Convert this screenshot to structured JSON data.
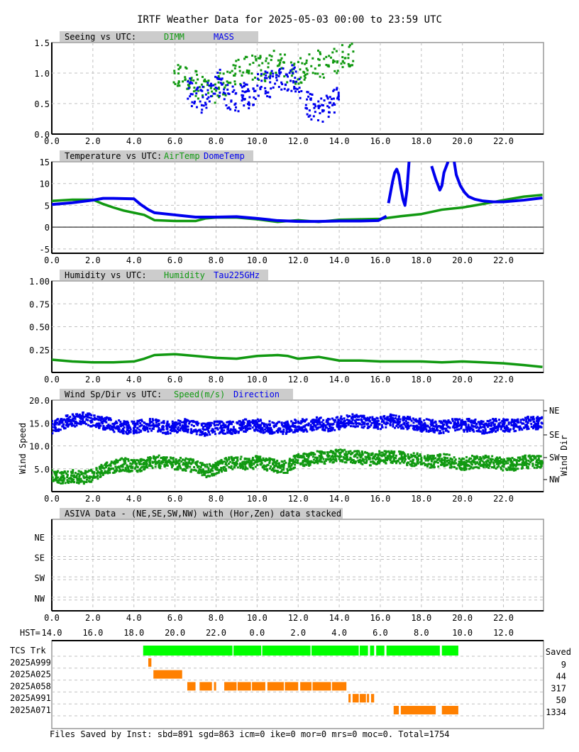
{
  "page_title": "IRTF Weather Data for 2025-05-03 00:00 to 23:59 UTC",
  "utc_ticks": [
    "0.0",
    "2.0",
    "4.0",
    "6.0",
    "8.0",
    "10.0",
    "12.0",
    "14.0",
    "16.0",
    "18.0",
    "20.0",
    "22.0"
  ],
  "hst_label": "HST=",
  "hst_ticks": [
    "14.0",
    "16.0",
    "18.0",
    "20.0",
    "22.0",
    "0.0",
    "2.0",
    "4.0",
    "6.0",
    "8.0",
    "10.0",
    "12.0"
  ],
  "colors": {
    "green": "#119911",
    "blue": "#0000ee",
    "bright_green": "#00ff00",
    "orange": "#ff8000",
    "header_bg": "#cccccc",
    "grid": "#c0c0c0"
  },
  "chart_data": [
    {
      "type": "scatter",
      "title": "Seeing vs UTC:",
      "series": [
        {
          "name": "DIMM",
          "color": "green",
          "segments": [
            {
              "x": [
                5.9,
                6.3,
                6.8,
                7.3,
                7.8,
                8.3,
                8.8,
                9.3,
                9.8,
                10.3,
                10.8,
                11.3,
                11.8,
                12.3,
                12.8,
                13.3,
                13.8,
                14.3,
                14.7
              ],
              "y": [
                0.85,
                0.95,
                0.9,
                0.75,
                0.7,
                0.8,
                0.95,
                1.05,
                1.1,
                1.05,
                1.15,
                1.1,
                1.0,
                1.05,
                1.2,
                1.1,
                1.2,
                1.3,
                1.35
              ]
            }
          ]
        },
        {
          "name": "MASS",
          "color": "blue",
          "segments": [
            {
              "x": [
                6.6,
                7.0,
                7.4,
                7.8,
                8.2,
                8.6,
                9.0,
                9.4,
                9.8,
                10.2,
                10.6,
                11.0,
                11.4,
                11.8,
                12.2,
                12.6,
                13.0,
                13.3,
                13.7,
                14.0
              ],
              "y": [
                0.75,
                0.6,
                0.55,
                0.7,
                0.85,
                0.6,
                0.55,
                0.7,
                0.55,
                0.95,
                0.8,
                1.0,
                0.85,
                0.95,
                0.6,
                0.45,
                0.4,
                0.4,
                0.55,
                0.65
              ]
            }
          ]
        }
      ],
      "ylim": [
        0,
        1.5
      ],
      "yticks": [
        "0.0",
        "0.5",
        "1.0",
        "1.5"
      ]
    },
    {
      "type": "line",
      "title": "Temperature vs UTC:",
      "series": [
        {
          "name": "AirTemp",
          "color": "green",
          "segments": [
            {
              "x": [
                0,
                1,
                2,
                2.5,
                3,
                3.5,
                4,
                4.5,
                5,
                6,
                7,
                7.5,
                8,
                9,
                10,
                11,
                12,
                13,
                14,
                15,
                16,
                17,
                18,
                19,
                20,
                21,
                22,
                23,
                23.9
              ],
              "y": [
                6,
                6.3,
                6.3,
                5.3,
                4.5,
                3.8,
                3.3,
                2.8,
                1.6,
                1.4,
                1.4,
                2.0,
                2.2,
                2.2,
                1.8,
                1.2,
                1.6,
                1.2,
                1.7,
                1.8,
                1.9,
                2.5,
                3.0,
                4.0,
                4.5,
                5.3,
                6.2,
                7.0,
                7.4
              ]
            }
          ]
        },
        {
          "name": "DomeTemp",
          "color": "blue",
          "segments": [
            {
              "x": [
                0,
                1,
                2,
                2.5,
                3,
                4,
                4.3,
                4.7,
                5,
                6,
                7,
                8,
                9,
                10,
                11,
                12,
                13,
                14,
                15,
                15.9,
                16.3
              ],
              "y": [
                5.2,
                5.6,
                6.2,
                6.6,
                6.6,
                6.5,
                5.3,
                4.0,
                3.3,
                2.8,
                2.3,
                2.3,
                2.4,
                2.0,
                1.5,
                1.3,
                1.3,
                1.4,
                1.4,
                1.5,
                2.5
              ]
            },
            {
              "x": [
                16.4,
                16.5,
                16.6,
                16.7,
                16.8,
                16.9,
                17.0,
                17.1,
                17.2,
                17.3,
                17.4
              ],
              "y": [
                5.5,
                8.0,
                10.5,
                12.5,
                13.3,
                12.0,
                9.0,
                6.5,
                5.0,
                8.5,
                15.0
              ]
            },
            {
              "x": [
                18.5,
                18.7,
                18.9,
                19.0,
                19.1,
                19.3
              ],
              "y": [
                14.0,
                11.0,
                8.5,
                9.5,
                12.5,
                15.0
              ]
            },
            {
              "x": [
                19.6,
                19.7,
                19.9,
                20.1,
                20.3,
                20.6,
                21.0,
                21.5,
                22.0,
                23.0,
                23.9
              ],
              "y": [
                15.0,
                12.0,
                9.5,
                8.0,
                7.0,
                6.4,
                6.0,
                5.8,
                5.8,
                6.2,
                6.7
              ]
            }
          ]
        }
      ],
      "ylim": [
        -6,
        15
      ],
      "yticks": [
        "-5",
        "0",
        "5",
        "10",
        "15"
      ]
    },
    {
      "type": "line",
      "title": "Humidity vs UTC:",
      "series": [
        {
          "name": "Humidity",
          "color": "green",
          "segments": [
            {
              "x": [
                0,
                1,
                2,
                3,
                4,
                4.5,
                5,
                6,
                7,
                8,
                9,
                10,
                11,
                11.5,
                12,
                13,
                14,
                15,
                16,
                17,
                18,
                19,
                20,
                21,
                22,
                23,
                23.9
              ],
              "y": [
                0.14,
                0.12,
                0.11,
                0.11,
                0.12,
                0.15,
                0.19,
                0.2,
                0.18,
                0.16,
                0.15,
                0.18,
                0.19,
                0.18,
                0.15,
                0.17,
                0.13,
                0.13,
                0.12,
                0.12,
                0.12,
                0.11,
                0.12,
                0.11,
                0.1,
                0.08,
                0.06
              ]
            }
          ]
        },
        {
          "name": "Tau225GHz",
          "color": "blue",
          "segments": []
        }
      ],
      "ylim": [
        0,
        1.0
      ],
      "yticks": [
        "0.25",
        "0.50",
        "0.75",
        "1.00"
      ]
    },
    {
      "type": "scatter",
      "title": "Wind Sp/Dir vs UTC:",
      "ylabel": "Wind Speed",
      "y2label": "Wind Dir",
      "series": [
        {
          "name": "Speed(m/s)",
          "color": "green",
          "segments": [
            {
              "x": [
                0,
                0.5,
                1,
                1.5,
                2,
                2.5,
                3,
                3.5,
                4,
                4.5,
                5,
                5.5,
                6,
                6.5,
                7,
                7.5,
                8,
                8.5,
                9,
                9.5,
                10,
                10.5,
                11,
                11.5,
                12,
                12.5,
                13,
                13.5,
                14,
                14.5,
                15,
                15.5,
                16,
                16.5,
                17,
                17.5,
                18,
                18.5,
                19,
                19.5,
                20,
                20.5,
                21,
                21.5,
                22,
                22.5,
                23,
                23.5,
                23.9
              ],
              "y": [
                3.5,
                3.0,
                3.5,
                3.0,
                3.5,
                5.0,
                5.5,
                6.0,
                5.5,
                6.0,
                6.5,
                6.5,
                6.0,
                6.0,
                5.5,
                4.5,
                5.0,
                6.0,
                6.5,
                6.0,
                6.5,
                6.0,
                5.5,
                5.5,
                7.0,
                7.0,
                7.5,
                7.5,
                8.0,
                7.5,
                7.5,
                7.0,
                7.5,
                7.5,
                7.5,
                7.0,
                7.0,
                6.5,
                7.0,
                6.5,
                6.0,
                6.5,
                6.5,
                6.5,
                6.0,
                6.0,
                6.5,
                6.5,
                6.5
              ]
            }
          ]
        },
        {
          "name": "Direction",
          "color": "blue",
          "segments": [
            {
              "x": [
                0,
                0.5,
                1,
                1.5,
                2,
                2.5,
                3,
                3.5,
                4,
                4.5,
                5,
                5.5,
                6,
                6.5,
                7,
                7.5,
                8,
                8.5,
                9,
                9.5,
                10,
                10.5,
                11,
                11.5,
                12,
                12.5,
                13,
                13.5,
                14,
                14.5,
                15,
                15.5,
                16,
                16.5,
                17,
                17.5,
                18,
                18.5,
                19,
                19.5,
                20,
                20.5,
                21,
                21.5,
                22,
                22.5,
                23,
                23.5,
                23.9
              ],
              "y": [
                14.0,
                15.0,
                15.5,
                16.0,
                15.5,
                15.0,
                14.5,
                14.0,
                14.0,
                14.5,
                14.5,
                14.0,
                14.0,
                14.5,
                14.0,
                13.5,
                14.0,
                14.0,
                14.0,
                14.5,
                14.5,
                14.0,
                14.0,
                14.0,
                14.5,
                14.5,
                15.0,
                14.5,
                15.0,
                15.5,
                15.5,
                15.0,
                15.0,
                15.5,
                15.0,
                15.0,
                14.5,
                14.5,
                14.0,
                14.5,
                14.5,
                14.5,
                14.0,
                14.5,
                14.5,
                14.5,
                15.0,
                15.0,
                15.0
              ]
            }
          ]
        }
      ],
      "ylim": [
        0,
        20
      ],
      "yticks": [
        "5.0",
        "10.0",
        "15.0",
        "20.0"
      ],
      "direction_labels": [
        "NE",
        "SE",
        "SW",
        "NW"
      ]
    },
    {
      "type": "scatter",
      "title": "ASIVA Data - (NE,SE,SW,NW) with (Hor,Zen) data stacked",
      "categories": [
        "NE",
        "SE",
        "SW",
        "NW"
      ],
      "series": []
    }
  ],
  "instruments": {
    "saved_header": "Saved",
    "rows": [
      {
        "label": "TCS Trk",
        "count": "",
        "color": "bright_green",
        "blocks": [
          [
            4.45,
            8.8
          ],
          [
            8.85,
            10.2
          ],
          [
            10.25,
            12.6
          ],
          [
            12.65,
            14.95
          ],
          [
            15.0,
            15.4
          ],
          [
            15.5,
            15.7
          ],
          [
            15.8,
            16.2
          ],
          [
            16.3,
            18.9
          ],
          [
            19.0,
            19.8
          ]
        ]
      },
      {
        "label": "2025A999",
        "count": "9",
        "color": "orange",
        "blocks": [
          [
            4.7,
            4.85
          ]
        ]
      },
      {
        "label": "2025A025",
        "count": "44",
        "color": "orange",
        "blocks": [
          [
            4.95,
            6.35
          ]
        ]
      },
      {
        "label": "2025A058",
        "count": "317",
        "color": "orange",
        "blocks": [
          [
            6.6,
            7.0
          ],
          [
            7.2,
            7.8
          ],
          [
            7.9,
            8.0
          ],
          [
            8.4,
            9.0
          ],
          [
            9.05,
            9.7
          ],
          [
            9.75,
            10.4
          ],
          [
            10.5,
            11.3
          ],
          [
            11.35,
            12.0
          ],
          [
            12.1,
            12.65
          ],
          [
            12.7,
            13.6
          ],
          [
            13.65,
            14.35
          ]
        ]
      },
      {
        "label": "2025A991",
        "count": "50",
        "color": "orange",
        "blocks": [
          [
            14.45,
            14.55
          ],
          [
            14.65,
            14.95
          ],
          [
            15.0,
            15.3
          ],
          [
            15.35,
            15.45
          ],
          [
            15.55,
            15.7
          ]
        ]
      },
      {
        "label": "2025A071",
        "count": "1334",
        "color": "orange",
        "blocks": [
          [
            16.65,
            16.9
          ],
          [
            17.0,
            18.7
          ],
          [
            19.0,
            19.8
          ]
        ]
      }
    ],
    "summary": "Files Saved by Inst: sbd=891 sgd=863 icm=0 ike=0 mor=0 mrs=0 moc=0. Total=1754"
  }
}
